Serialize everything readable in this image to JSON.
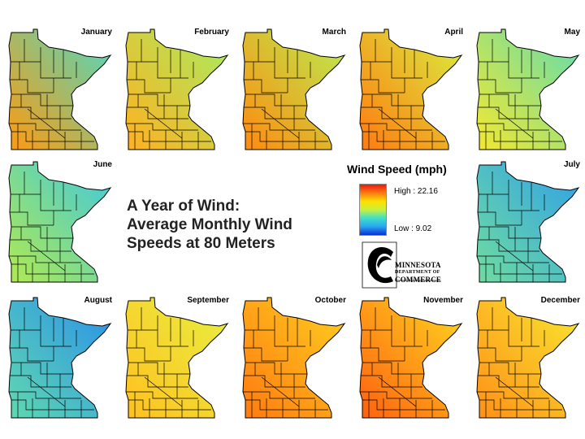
{
  "title": {
    "line1": "A Year of Wind:",
    "line2": "Average Monthly Wind",
    "line3": "Speeds at 80 Meters"
  },
  "legend": {
    "title": "Wind Speed (mph)",
    "high_label": "High : 22.16",
    "low_label": "Low : 9.02",
    "high_value": 22.16,
    "low_value": 9.02,
    "color_ramp": [
      "#0a2fd8",
      "#2aa6f0",
      "#3fe0c8",
      "#c8f040",
      "#ffe000",
      "#ff7a10",
      "#e81a10"
    ]
  },
  "logo": {
    "line1": "MINNESOTA",
    "line2": "DEPARTMENT OF",
    "line3": "COMMERCE"
  },
  "months": [
    {
      "name": "January",
      "south": "#ff9a10",
      "north": "#4fd8c0"
    },
    {
      "name": "February",
      "south": "#ffb020",
      "north": "#a8ec60"
    },
    {
      "name": "March",
      "south": "#ff8a10",
      "north": "#b8ee50"
    },
    {
      "name": "April",
      "south": "#ff7a10",
      "north": "#d8f040"
    },
    {
      "name": "May",
      "south": "#f4e830",
      "north": "#60dcb0"
    },
    {
      "name": "June",
      "south": "#b0ea50",
      "north": "#40c8e0"
    },
    {
      "name": "July",
      "south": "#70dca0",
      "north": "#30a0e8"
    },
    {
      "name": "August",
      "south": "#60d8b0",
      "north": "#2a90ea"
    },
    {
      "name": "September",
      "south": "#ffc020",
      "north": "#e8f040"
    },
    {
      "name": "October",
      "south": "#ff7a10",
      "north": "#ffd020"
    },
    {
      "name": "November",
      "south": "#ff6010",
      "north": "#ffd820"
    },
    {
      "name": "December",
      "south": "#ff9018",
      "north": "#f8e830"
    }
  ]
}
